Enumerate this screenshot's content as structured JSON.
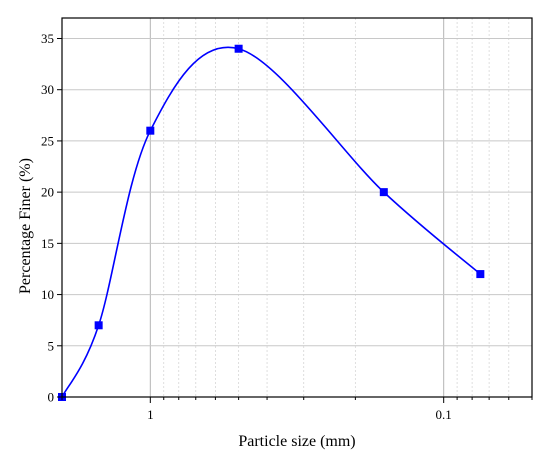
{
  "chart_data": {
    "type": "line",
    "xlabel": "Particle size (mm)",
    "ylabel": "Percentage Finer (%)",
    "x_scale": "log",
    "x_reversed": true,
    "xlim": [
      2.0,
      0.05
    ],
    "ylim": [
      0,
      37
    ],
    "x_major_ticks": [
      1,
      0.1
    ],
    "x_tick_labels": [
      "1",
      "0.1"
    ],
    "y_ticks": [
      0,
      5,
      10,
      15,
      20,
      25,
      30,
      35
    ],
    "y_tick_labels": [
      "0",
      "5",
      "10",
      "15",
      "20",
      "25",
      "30",
      "35"
    ],
    "grid": true,
    "series": [
      {
        "x": [
          2.0,
          1.5,
          1.0,
          0.5,
          0.16,
          0.075
        ],
        "y": [
          0,
          7,
          26,
          34,
          20,
          12
        ],
        "color": "#0000ff",
        "marker": "square"
      }
    ]
  }
}
